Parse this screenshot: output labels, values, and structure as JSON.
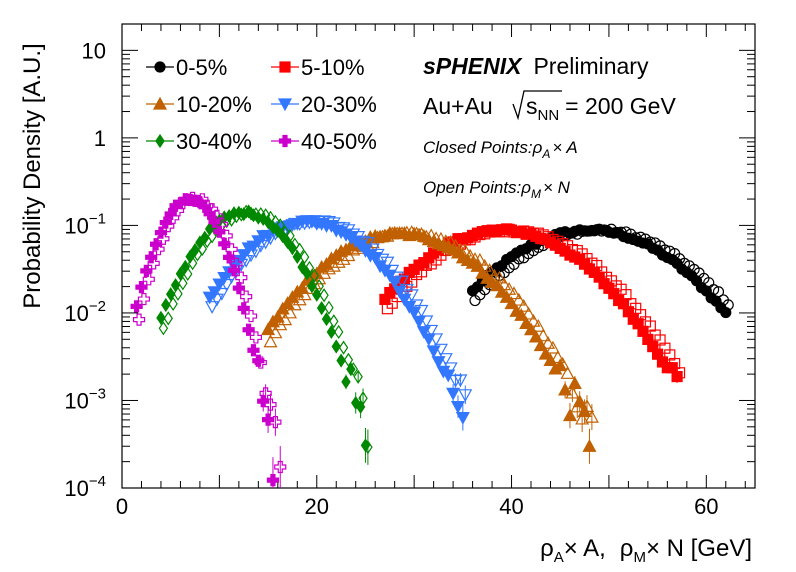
{
  "chart_data": {
    "type": "scatter",
    "title": "",
    "xlabel": "ρA× A,   ρM× N [GeV]",
    "ylabel": "Probability Density [A.U.]",
    "xlim": [
      0,
      65
    ],
    "ylim": [
      0.0001,
      20
    ],
    "yscale": "log",
    "grid": false,
    "legend_position": "top-left",
    "x_ticks": [
      0,
      20,
      40,
      60
    ],
    "y_ticks": [
      {
        "value": 10,
        "base": "10",
        "exp": ""
      },
      {
        "value": 1,
        "base": "1",
        "exp": ""
      },
      {
        "value": 0.1,
        "base": "10",
        "exp": "−1"
      },
      {
        "value": 0.01,
        "base": "10",
        "exp": "−2"
      },
      {
        "value": 0.001,
        "base": "10",
        "exp": "−3"
      },
      {
        "value": 0.0001,
        "base": "10",
        "exp": "−4"
      }
    ],
    "annotations": {
      "experiment": "sPHENIX",
      "status": "Preliminary",
      "system": "Au+Au",
      "energy_symbol": "s",
      "energy_subscript": "NN",
      "energy_value": "= 200 GeV",
      "closed_points": "Closed Points:",
      "closed_rho": "ρ",
      "closed_sub": "A",
      "closed_tail": "× A",
      "open_points": "Open Points:",
      "open_rho": "ρ",
      "open_sub": "M",
      "open_tail": "× N"
    },
    "xlabel_parts": {
      "rho1": "ρ",
      "sub1": "A",
      "mid1": "× A,",
      "rho2": "ρ",
      "sub2": "M",
      "mid2": "× N [GeV]"
    },
    "series": [
      {
        "name": "0-5%",
        "color": "#000000",
        "marker": "circle",
        "peak_x": 48,
        "peak_y": 0.088,
        "sigma": 6.7,
        "xmin": 36,
        "xmax": 62
      },
      {
        "name": "5-10%",
        "color": "#ff0000",
        "marker": "square",
        "peak_x": 39,
        "peak_y": 0.088,
        "sigma": 6.3,
        "xmin": 27,
        "xmax": 57
      },
      {
        "name": "10-20%",
        "color": "#c06000",
        "marker": "triangle-up",
        "peak_x": 28.5,
        "peak_y": 0.08,
        "sigma": 6.0,
        "xmin": 15,
        "xmax": 48
      },
      {
        "name": "20-30%",
        "color": "#3377ff",
        "marker": "triangle-down",
        "peak_x": 19,
        "peak_y": 0.11,
        "sigma": 5.0,
        "xmin": 9,
        "xmax": 35
      },
      {
        "name": "30-40%",
        "color": "#008800",
        "marker": "diamond",
        "peak_x": 12.5,
        "peak_y": 0.14,
        "sigma": 3.6,
        "xmin": 4,
        "xmax": 25
      },
      {
        "name": "40-50%",
        "color": "#cc00cc",
        "marker": "cross",
        "peak_x": 7,
        "peak_y": 0.2,
        "sigma": 2.3,
        "xmin": 1.5,
        "xmax": 17
      }
    ]
  }
}
